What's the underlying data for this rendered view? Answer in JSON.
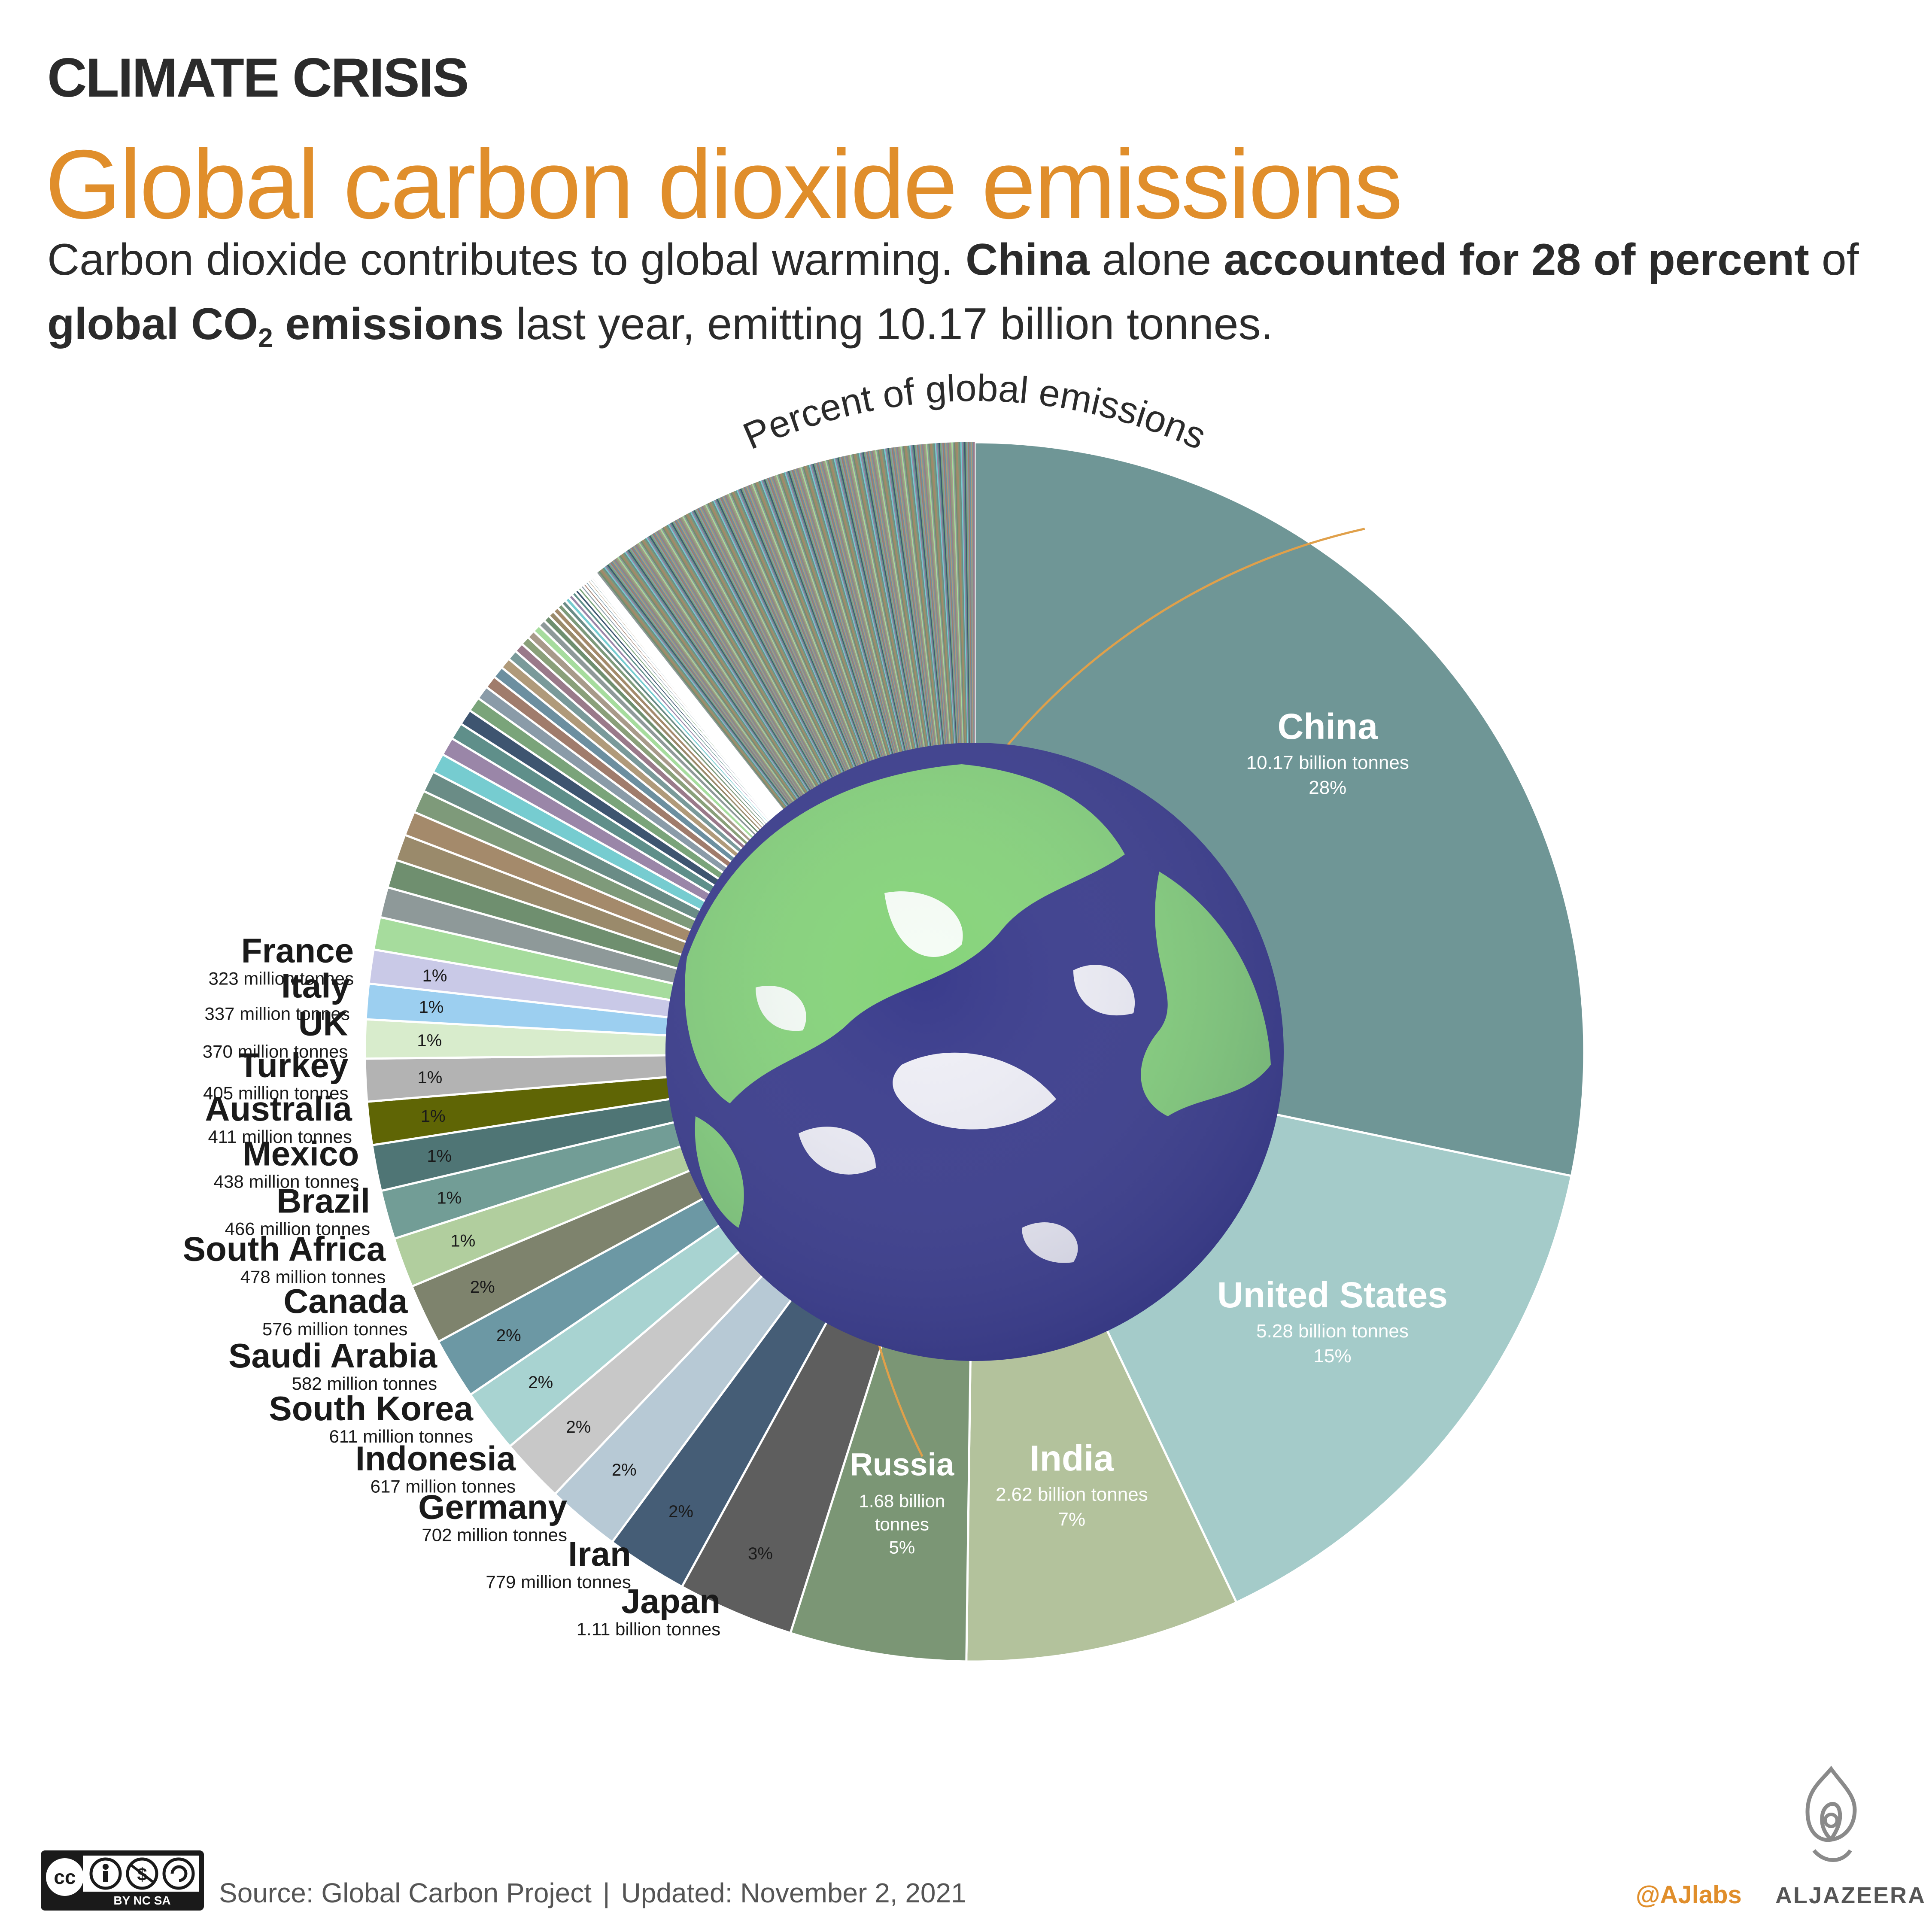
{
  "header": {
    "kicker": "CLIMATE CRISIS",
    "title": "Global carbon dioxide emissions",
    "sub_1": "Carbon dioxide contributes to global warming. ",
    "sub_2": "China",
    "sub_3": " alone ",
    "sub_4": "accounted for 28 of percent",
    "sub_5": " of",
    "sub_6": "global CO",
    "sub_7": "2",
    "sub_8": " emissions",
    "sub_9": " last year, emitting 10.17 billion tonnes."
  },
  "chart_data": {
    "type": "pie",
    "title": "Percent of  global emissions",
    "unit": "tonnes",
    "series": [
      {
        "name": "China",
        "amount": "10.17 billion tonnes",
        "value": 10.17,
        "pct": "28%",
        "color": "#6f9696"
      },
      {
        "name": "United States",
        "amount": "5.28 billion tonnes",
        "value": 5.28,
        "pct": "15%",
        "color": "#a4cbc9"
      },
      {
        "name": "India",
        "amount": "2.62 billion tonnes",
        "value": 2.62,
        "pct": "7%",
        "color": "#b3c29c"
      },
      {
        "name": "Russia",
        "amount": "1.68 billion tonnes",
        "value": 1.68,
        "pct": "5%",
        "color": "#7b9675"
      },
      {
        "name": "Japan",
        "amount": "1.11  billion tonnes",
        "value": 1.11,
        "pct": "3%",
        "color": "#5e5e5e"
      },
      {
        "name": "Iran",
        "amount": "779  million tonnes",
        "value": 0.779,
        "pct": "2%",
        "color": "#455d76"
      },
      {
        "name": "Germany",
        "amount": "702  million tonnes",
        "value": 0.702,
        "pct": "2%",
        "color": "#b7c9d5"
      },
      {
        "name": "Indonesia",
        "amount": "617 million tonnes",
        "value": 0.617,
        "pct": "2%",
        "color": "#c8c8c8"
      },
      {
        "name": "South Korea",
        "amount": "611 million tonnes",
        "value": 0.611,
        "pct": "2%",
        "color": "#a8d3d1"
      },
      {
        "name": "Saudi Arabia",
        "amount": "582 million tonnes",
        "value": 0.582,
        "pct": "2%",
        "color": "#6c98a4"
      },
      {
        "name": "Canada",
        "amount": "576 million tonnes",
        "value": 0.576,
        "pct": "2%",
        "color": "#7e836d"
      },
      {
        "name": "South Africa",
        "amount": "478 million tonnes",
        "value": 0.478,
        "pct": "1%",
        "color": "#b1ce9e"
      },
      {
        "name": "Brazil",
        "amount": "466 million tonnes",
        "value": 0.466,
        "pct": "1%",
        "color": "#729d96"
      },
      {
        "name": "Mexico",
        "amount": "438 million tonnes",
        "value": 0.438,
        "pct": "1%",
        "color": "#4f7575"
      },
      {
        "name": "Australia",
        "amount": "411 million tonnes",
        "value": 0.411,
        "pct": "1%",
        "color": "#5f6505"
      },
      {
        "name": "Turkey",
        "amount": "405 million tonnes",
        "value": 0.405,
        "pct": "1%",
        "color": "#b3b3b3"
      },
      {
        "name": "UK",
        "amount": "370 million tonnes",
        "value": 0.37,
        "pct": "1%",
        "color": "#d8eccc"
      },
      {
        "name": "Italy",
        "amount": "337 million tonnes",
        "value": 0.337,
        "pct": "1%",
        "color": "#9ccff0"
      },
      {
        "name": "France",
        "amount": "323 million tonnes",
        "value": 0.323,
        "pct": "1%",
        "color": "#c9c9e7"
      }
    ],
    "other_countries_value": 8.03,
    "other_palette": [
      "#a6dc9d",
      "#8e9999",
      "#6f8f6f",
      "#9a8a6b",
      "#a48a6b",
      "#7e9a7a",
      "#6a8c86",
      "#76ccd0",
      "#9a86a8",
      "#5f8f8a",
      "#3e5570",
      "#7aa47a",
      "#8a9ba8",
      "#a07c6c",
      "#6c8fa0",
      "#b09a7a",
      "#7a9a9a",
      "#9a7a8a",
      "#8aa07a",
      "#a89a8a"
    ]
  },
  "footer": {
    "cc_label": "BY  NC  SA",
    "source": "Source: Global Carbon Project",
    "separator": "|",
    "updated": "Updated: November 2, 2021",
    "handle": "@AJlabs",
    "brand": "ALJAZEERA"
  }
}
